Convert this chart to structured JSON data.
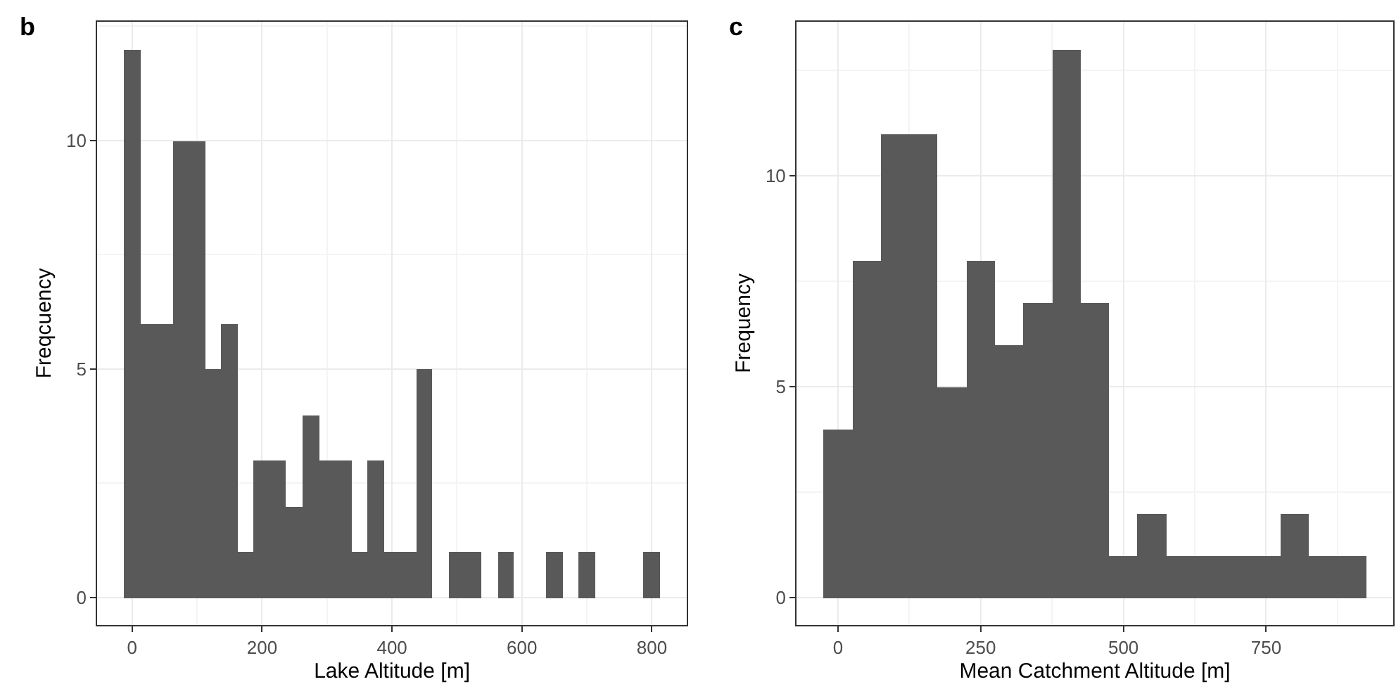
{
  "chart_data": [
    {
      "type": "histogram",
      "title": "b",
      "xlabel": "Lake Altitude [m]",
      "ylabel": "Freqcuency",
      "color": "#595959",
      "bins": [
        -12.5,
        12.5,
        37.5,
        62.5,
        87.5,
        112.5,
        137.5,
        162.5,
        187.5,
        212.5,
        237.5,
        262.5,
        287.5,
        312.5,
        337.5,
        362.5,
        387.5,
        412.5,
        437.5,
        462.5,
        487.5,
        512.5,
        537.5,
        562.5,
        587.5,
        612.5,
        637.5,
        662.5,
        687.5,
        712.5,
        737.5,
        762.5,
        787.5,
        812.5
      ],
      "values": [
        12,
        6,
        6,
        10,
        10,
        5,
        6,
        1,
        3,
        3,
        2,
        4,
        3,
        3,
        1,
        3,
        1,
        1,
        5,
        0,
        1,
        1,
        0,
        1,
        0,
        0,
        1,
        0,
        1,
        0,
        0,
        0,
        1
      ],
      "xlim": [
        -53.75,
        853.75
      ],
      "xticks": [
        0,
        200,
        400,
        600,
        800
      ],
      "ylim": [
        -0.6,
        12.6
      ],
      "yticks": [
        0,
        5,
        10
      ],
      "grid": true
    },
    {
      "type": "histogram",
      "title": "c",
      "xlabel": "Mean Catchment Altitude [m]",
      "ylabel": "Frequency",
      "color": "#595959",
      "bins": [
        -25,
        25,
        75,
        125,
        175,
        225,
        275,
        325,
        375,
        425,
        475,
        525,
        575,
        625,
        675,
        725,
        775,
        825,
        875,
        925
      ],
      "values": [
        4,
        8,
        11,
        11,
        5,
        8,
        6,
        7,
        13,
        7,
        1,
        2,
        1,
        1,
        1,
        1,
        2,
        1,
        1
      ],
      "xlim": [
        -72.5,
        972.5
      ],
      "xticks": [
        0,
        250,
        500,
        750
      ],
      "ylim": [
        -0.65,
        13.65
      ],
      "yticks": [
        0,
        5,
        10
      ],
      "grid": true
    }
  ]
}
